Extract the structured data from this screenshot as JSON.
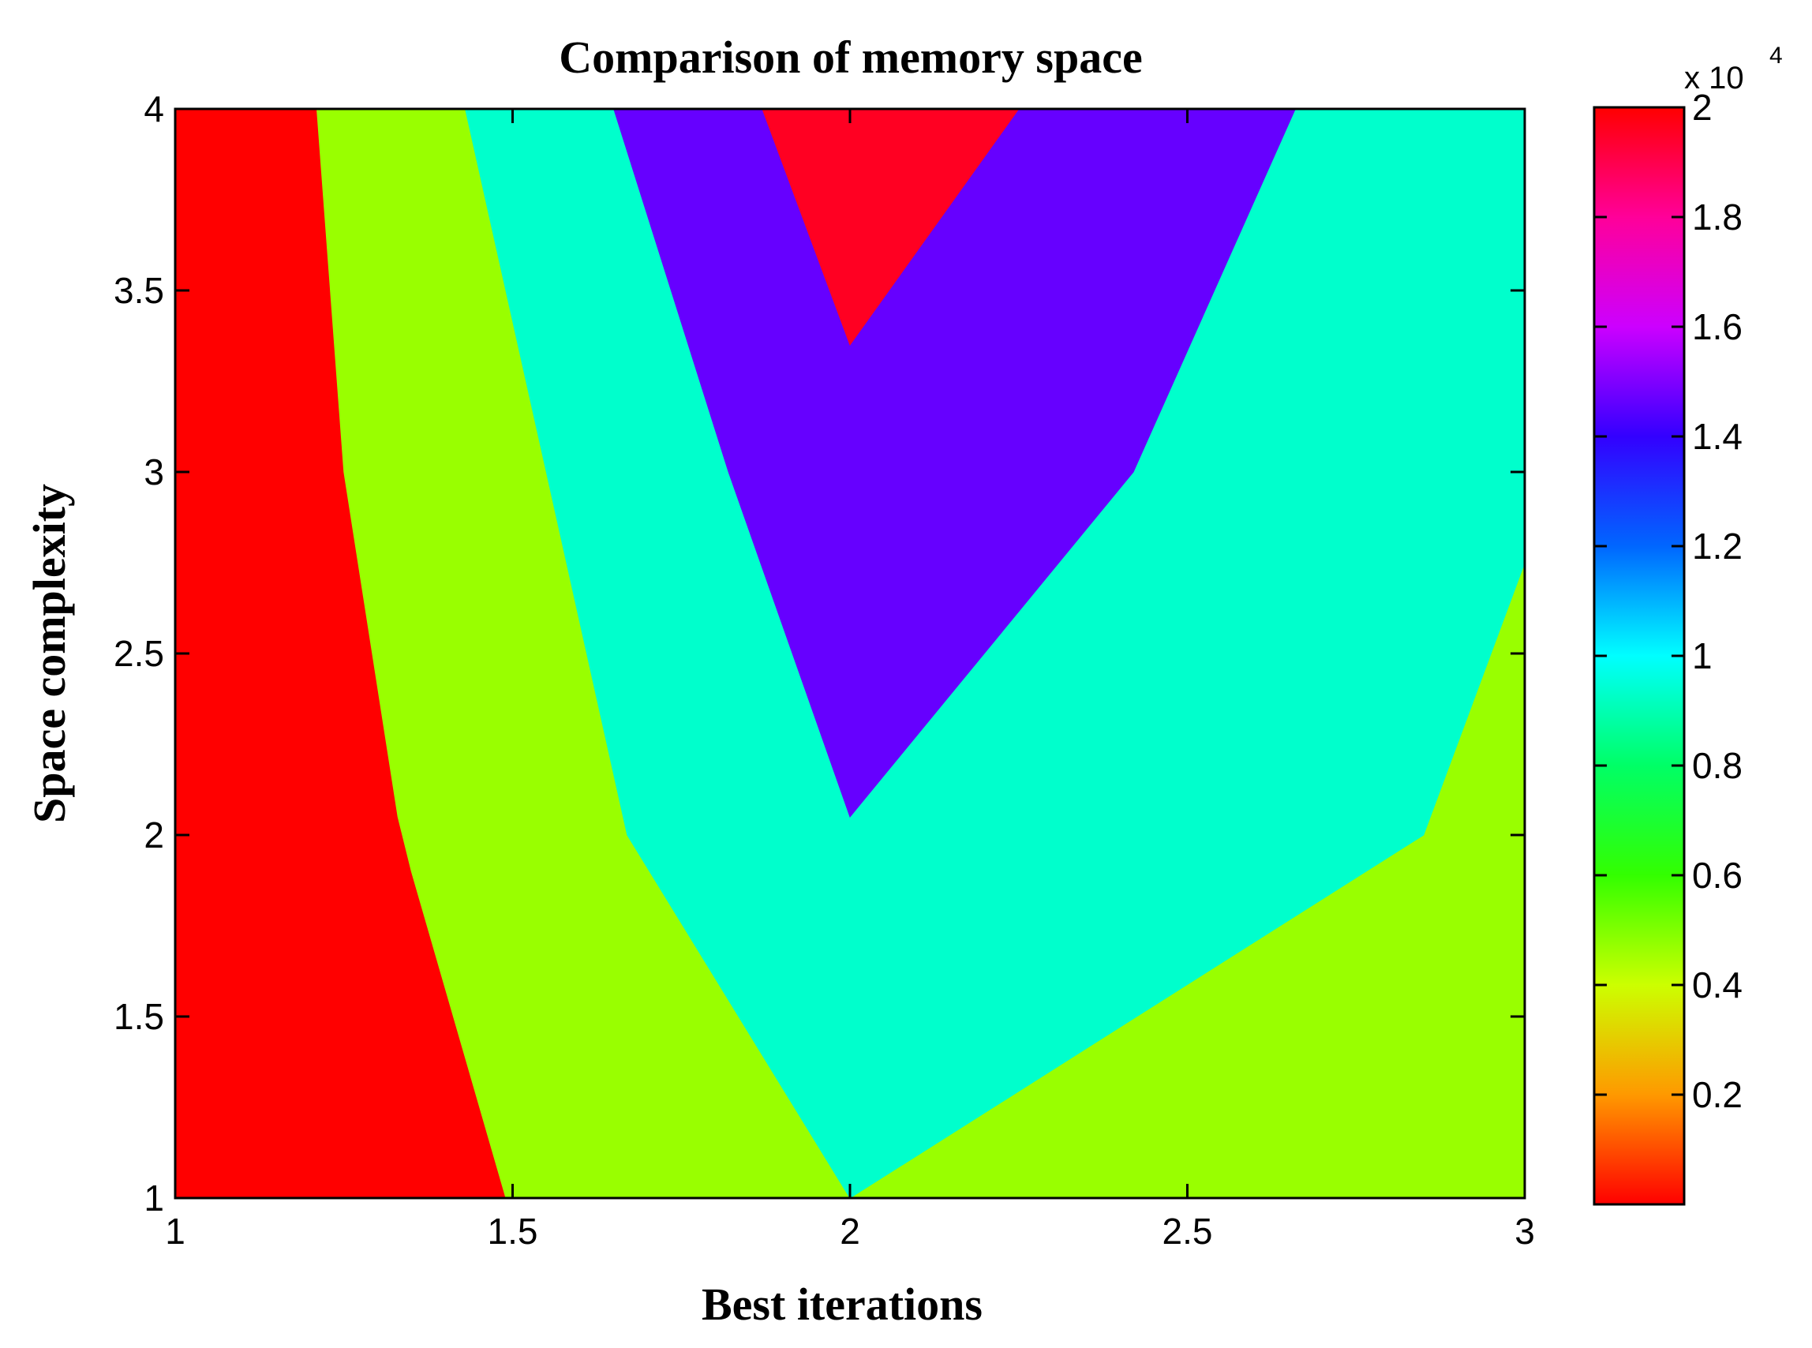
{
  "chart_data": {
    "type": "contour-filled",
    "title": "Comparison of memory space",
    "xlabel": "Best iterations",
    "ylabel": "Space complexity",
    "xlim": [
      1,
      3
    ],
    "ylim": [
      1,
      4
    ],
    "x_ticks": [
      "1",
      "1.5",
      "2",
      "2.5",
      "3"
    ],
    "y_ticks": [
      "1",
      "1.5",
      "2",
      "2.5",
      "3",
      "3.5",
      "4"
    ],
    "colorbar": {
      "range": [
        0,
        20000
      ],
      "multiplier_label": "x 10",
      "multiplier_exponent": "4",
      "ticks": [
        "0.2",
        "0.4",
        "0.6",
        "0.8",
        "1",
        "1.2",
        "1.4",
        "1.6",
        "1.8",
        "2"
      ],
      "colormap": "hsv",
      "stops": [
        "#ff0000",
        "#ff9900",
        "#ccff00",
        "#33ff00",
        "#00ff66",
        "#00ffff",
        "#0066ff",
        "#3300ff",
        "#cc00ff",
        "#ff0099",
        "#ff0000"
      ]
    },
    "regions": [
      {
        "color": "#ff0000",
        "points": [
          [
            1,
            1
          ],
          [
            1.49,
            1
          ],
          [
            1.35,
            1.9
          ],
          [
            1.33,
            2.05
          ],
          [
            1.25,
            3.0
          ],
          [
            1.21,
            4
          ],
          [
            1,
            4
          ]
        ]
      },
      {
        "color": "#99ff00",
        "points": [
          [
            1.49,
            1
          ],
          [
            3,
            1
          ],
          [
            3,
            2.75
          ],
          [
            2.85,
            2.0
          ],
          [
            2,
            1
          ],
          [
            1.67,
            2.0
          ],
          [
            1.55,
            3.0
          ],
          [
            1.43,
            4
          ],
          [
            1.21,
            4
          ],
          [
            1.25,
            3.0
          ],
          [
            1.33,
            2.05
          ],
          [
            1.35,
            1.9
          ]
        ]
      },
      {
        "color": "#00ffcc",
        "points": [
          [
            2,
            1
          ],
          [
            2.85,
            2.0
          ],
          [
            3,
            2.75
          ],
          [
            3,
            4
          ],
          [
            2.66,
            4
          ],
          [
            2.42,
            3.0
          ],
          [
            2,
            2.05
          ],
          [
            1.82,
            3.0
          ],
          [
            1.65,
            4
          ],
          [
            1.43,
            4
          ],
          [
            1.55,
            3.0
          ],
          [
            1.67,
            2.0
          ]
        ]
      },
      {
        "color": "#6600ff",
        "points": [
          [
            2,
            2.05
          ],
          [
            2.42,
            3.0
          ],
          [
            2.66,
            4
          ],
          [
            2.25,
            4
          ],
          [
            2,
            3.35
          ],
          [
            1.87,
            4
          ],
          [
            1.65,
            4
          ],
          [
            1.82,
            3.0
          ]
        ]
      },
      {
        "color": "#ff0022",
        "points": [
          [
            1.87,
            4
          ],
          [
            2,
            3.35
          ],
          [
            2.25,
            4
          ]
        ]
      }
    ]
  }
}
